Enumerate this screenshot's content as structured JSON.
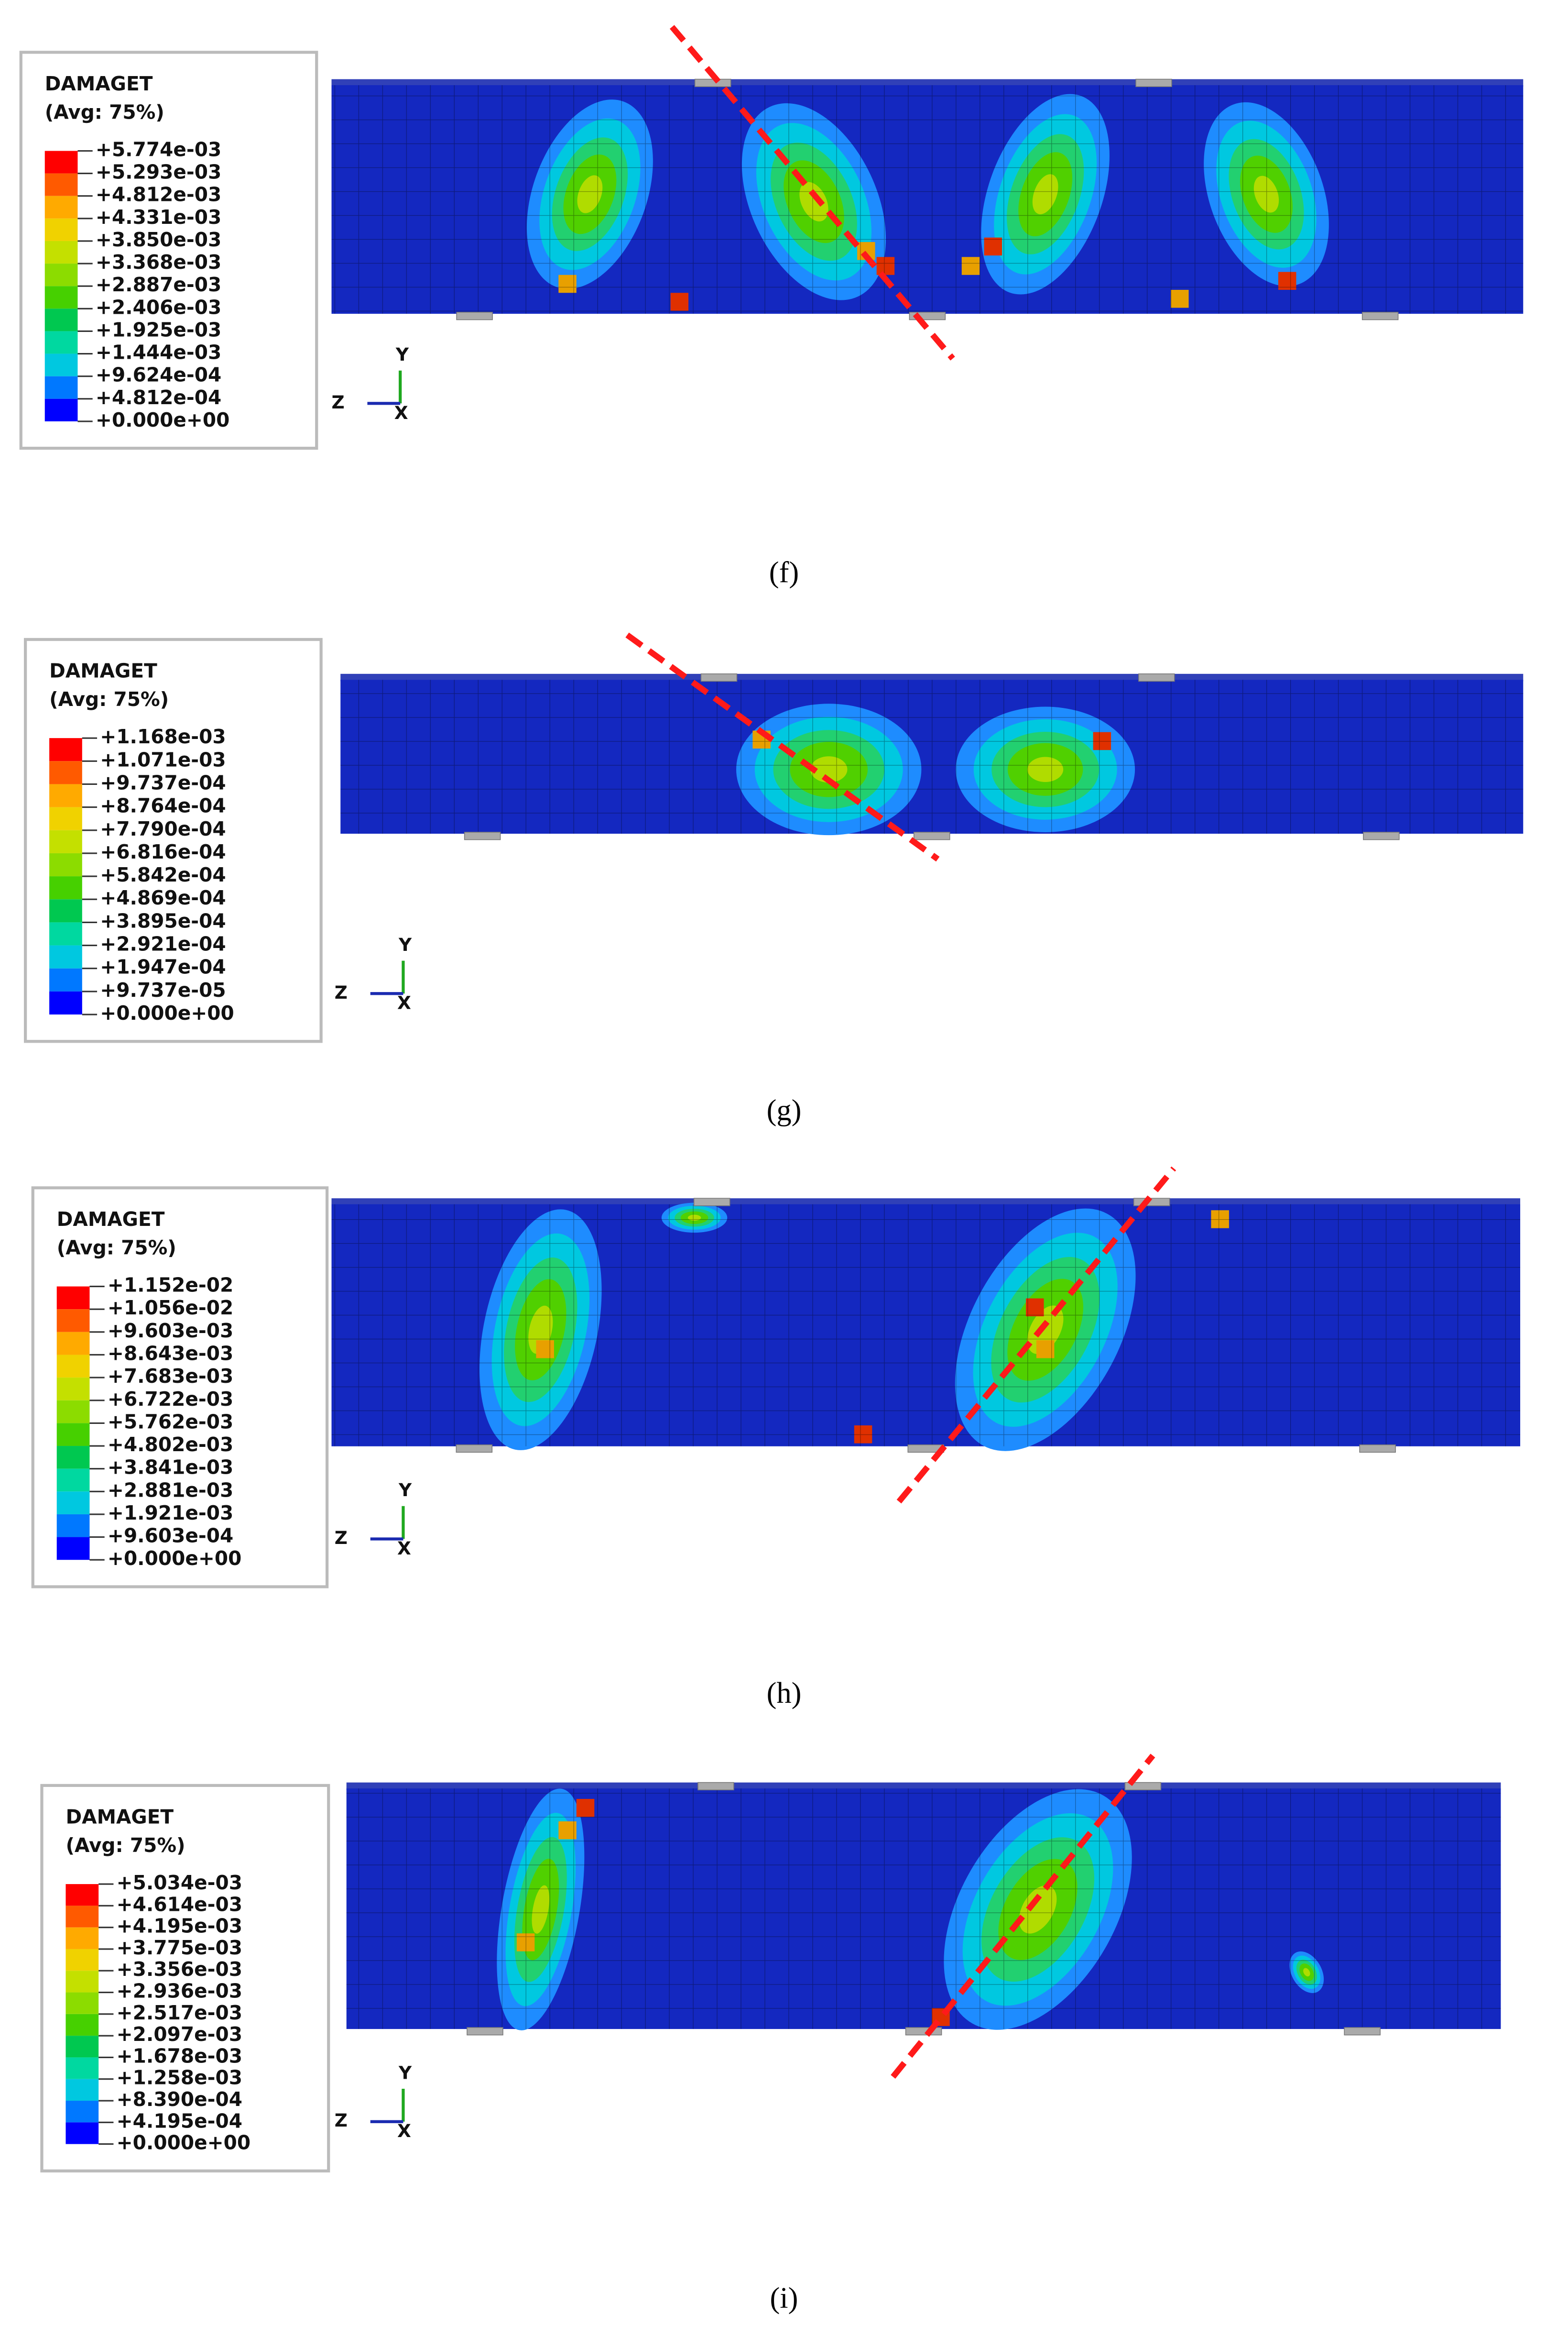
{
  "panels": [
    {
      "caption": "(f)",
      "legend": {
        "title": "DAMAGET",
        "subtitle": "(Avg: 75%)",
        "values": [
          "+5.774e-03",
          "+5.293e-03",
          "+4.812e-03",
          "+4.331e-03",
          "+3.850e-03",
          "+3.368e-03",
          "+2.887e-03",
          "+2.406e-03",
          "+1.925e-03",
          "+1.444e-03",
          "+9.624e-04",
          "+4.812e-04",
          "+0.000e+00"
        ]
      },
      "axes": {
        "y": "Y",
        "z": "Z",
        "x": "X"
      }
    },
    {
      "caption": "(g)",
      "legend": {
        "title": "DAMAGET",
        "subtitle": "(Avg: 75%)",
        "values": [
          "+1.168e-03",
          "+1.071e-03",
          "+9.737e-04",
          "+8.764e-04",
          "+7.790e-04",
          "+6.816e-04",
          "+5.842e-04",
          "+4.869e-04",
          "+3.895e-04",
          "+2.921e-04",
          "+1.947e-04",
          "+9.737e-05",
          "+0.000e+00"
        ]
      },
      "axes": {
        "y": "Y",
        "z": "Z",
        "x": "X"
      }
    },
    {
      "caption": "(h)",
      "legend": {
        "title": "DAMAGET",
        "subtitle": "(Avg: 75%)",
        "values": [
          "+1.152e-02",
          "+1.056e-02",
          "+9.603e-03",
          "+8.643e-03",
          "+7.683e-03",
          "+6.722e-03",
          "+5.762e-03",
          "+4.802e-03",
          "+3.841e-03",
          "+2.881e-03",
          "+1.921e-03",
          "+9.603e-04",
          "+0.000e+00"
        ]
      },
      "axes": {
        "y": "Y",
        "z": "Z",
        "x": "X"
      }
    },
    {
      "caption": "(i)",
      "legend": {
        "title": "DAMAGET",
        "subtitle": "(Avg: 75%)",
        "values": [
          "+5.034e-03",
          "+4.614e-03",
          "+4.195e-03",
          "+3.775e-03",
          "+3.356e-03",
          "+2.936e-03",
          "+2.517e-03",
          "+2.097e-03",
          "+1.678e-03",
          "+1.258e-03",
          "+8.390e-04",
          "+4.195e-04",
          "+0.000e+00"
        ]
      },
      "axes": {
        "y": "Y",
        "z": "Z",
        "x": "X"
      }
    }
  ]
}
